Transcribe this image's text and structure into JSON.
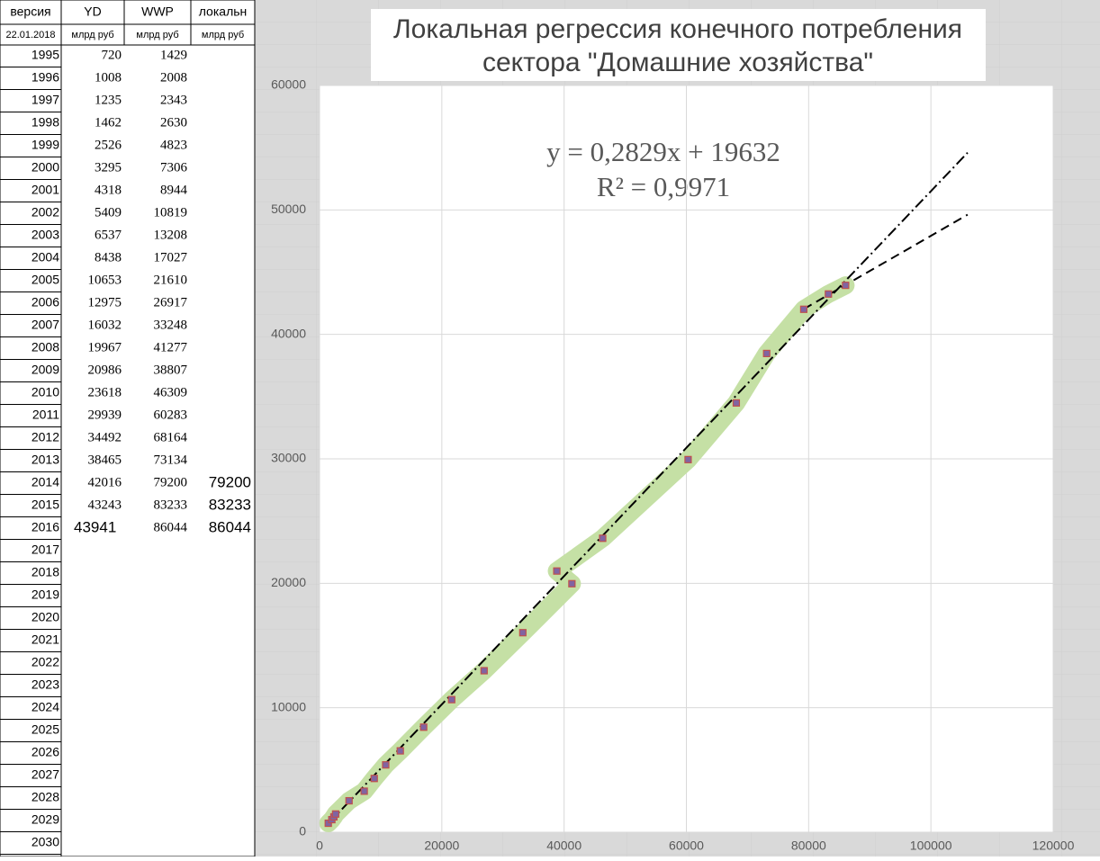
{
  "table": {
    "header": [
      "версия",
      "YD",
      "WWP",
      "локальн"
    ],
    "subheader": [
      "22.01.2018",
      "млрд руб",
      "млрд руб",
      "млрд руб"
    ],
    "rows": [
      [
        1995,
        720,
        1429
      ],
      [
        1996,
        1008,
        2008
      ],
      [
        1997,
        1235,
        2343
      ],
      [
        1998,
        1462,
        2630
      ],
      [
        1999,
        2526,
        4823
      ],
      [
        2000,
        3295,
        7306
      ],
      [
        2001,
        4318,
        8944
      ],
      [
        2002,
        5409,
        10819
      ],
      [
        2003,
        6537,
        13208
      ],
      [
        2004,
        8438,
        17027
      ],
      [
        2005,
        10653,
        21610
      ],
      [
        2006,
        12975,
        26917
      ],
      [
        2007,
        16032,
        33248
      ],
      [
        2008,
        19967,
        41277
      ],
      [
        2009,
        20986,
        38807
      ],
      [
        2010,
        23618,
        46309
      ],
      [
        2011,
        29939,
        60283
      ],
      [
        2012,
        34492,
        68164
      ],
      [
        2013,
        38465,
        73134
      ],
      [
        2014,
        42016,
        79200,
        79200
      ],
      [
        2015,
        43243,
        83233,
        83233
      ],
      [
        2016,
        43941,
        86044,
        86044
      ],
      [
        2017
      ],
      [
        2018
      ],
      [
        2019
      ],
      [
        2020
      ],
      [
        2021
      ],
      [
        2022
      ],
      [
        2023
      ],
      [
        2024
      ],
      [
        2025
      ],
      [
        2026
      ],
      [
        2027
      ],
      [
        2028
      ],
      [
        2029
      ],
      [
        2030
      ]
    ]
  },
  "chart_data": {
    "type": "scatter",
    "title": [
      "Локальная регрессия конечного потребления",
      "сектора \"Домашние хозяйства\""
    ],
    "x": [
      1429,
      2008,
      2343,
      2630,
      4823,
      7306,
      8944,
      10819,
      13208,
      17027,
      21610,
      26917,
      33248,
      41277,
      38807,
      46309,
      60283,
      68164,
      73134,
      79200,
      83233,
      86044
    ],
    "values": [
      720,
      1008,
      1235,
      1462,
      2526,
      3295,
      4318,
      5409,
      6537,
      8438,
      10653,
      12975,
      16032,
      19967,
      20986,
      23618,
      29939,
      34492,
      38465,
      42016,
      43243,
      43941
    ],
    "color": "#8064a2",
    "band_color": "#c5e0a5",
    "xlim": [
      0,
      120000
    ],
    "ylim": [
      0,
      60000
    ],
    "xticks": [
      0,
      20000,
      40000,
      60000,
      80000,
      100000,
      120000
    ],
    "yticks": [
      0,
      10000,
      20000,
      30000,
      40000,
      50000,
      60000
    ],
    "grid": true,
    "annotations": [
      "y = 0,2829x + 19632",
      "R² = 0,9971"
    ],
    "trendlines": [
      {
        "x": [
          1429,
          106000
        ],
        "values": [
          700,
          54600
        ],
        "dash": "dashdot"
      },
      {
        "x": [
          79200,
          106000
        ],
        "values": [
          42038,
          49619
        ],
        "dash": "dash"
      }
    ]
  }
}
